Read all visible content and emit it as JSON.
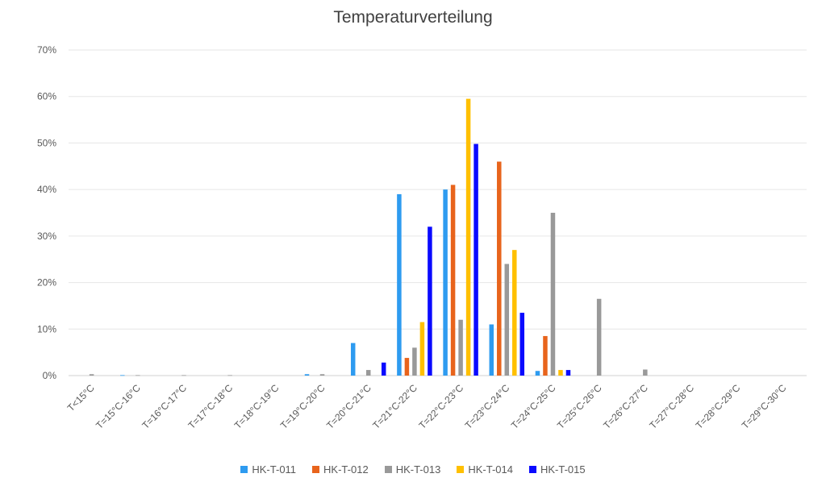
{
  "chart_data": {
    "type": "bar",
    "title": "Temperaturverteilung",
    "categories": [
      "T<15°C",
      "T=15°C-16°C",
      "T=16°C-17°C",
      "T=17°C-18°C",
      "T=18°C-19°C",
      "T=19°C-20°C",
      "T=20°C-21°C",
      "T=21°C-22°C",
      "T=22°C-23°C",
      "T=23°C-24°C",
      "T=24°C-25°C",
      "T=25°C-26°C",
      "T=26°C-27°C",
      "T=27°C-28°C",
      "T=28°C-29°C",
      "T=29°C-30°C"
    ],
    "series": [
      {
        "name": "HK-T-011",
        "color": "#2e9bf0",
        "values": [
          0,
          0.1,
          0,
          0,
          0,
          0.3,
          7,
          39,
          40,
          11,
          1,
          0,
          0,
          0,
          0,
          0
        ]
      },
      {
        "name": "HK-T-012",
        "color": "#e8641c",
        "values": [
          0,
          0,
          0,
          0,
          0,
          0,
          0,
          3.8,
          41,
          46,
          8.5,
          0,
          0,
          0,
          0,
          0
        ]
      },
      {
        "name": "HK-T-013",
        "color": "#999999",
        "values": [
          0.3,
          0.1,
          0.1,
          0.1,
          0,
          0.3,
          1.2,
          6,
          12,
          24,
          35,
          16.5,
          1.3,
          0,
          0,
          0
        ]
      },
      {
        "name": "HK-T-014",
        "color": "#ffc000",
        "values": [
          0,
          0,
          0,
          0,
          0,
          0,
          0,
          11.5,
          59.5,
          27,
          1.2,
          0,
          0,
          0,
          0,
          0
        ]
      },
      {
        "name": "HK-T-015",
        "color": "#0a0aff",
        "values": [
          0,
          0,
          0,
          0,
          0,
          0,
          2.8,
          32,
          49.8,
          13.5,
          1.2,
          0,
          0,
          0,
          0,
          0
        ]
      }
    ],
    "yticks": [
      "0%",
      "10%",
      "20%",
      "30%",
      "40%",
      "50%",
      "60%",
      "70%"
    ],
    "ylim": [
      0,
      70
    ],
    "grid": true,
    "legend_position": "bottom"
  }
}
